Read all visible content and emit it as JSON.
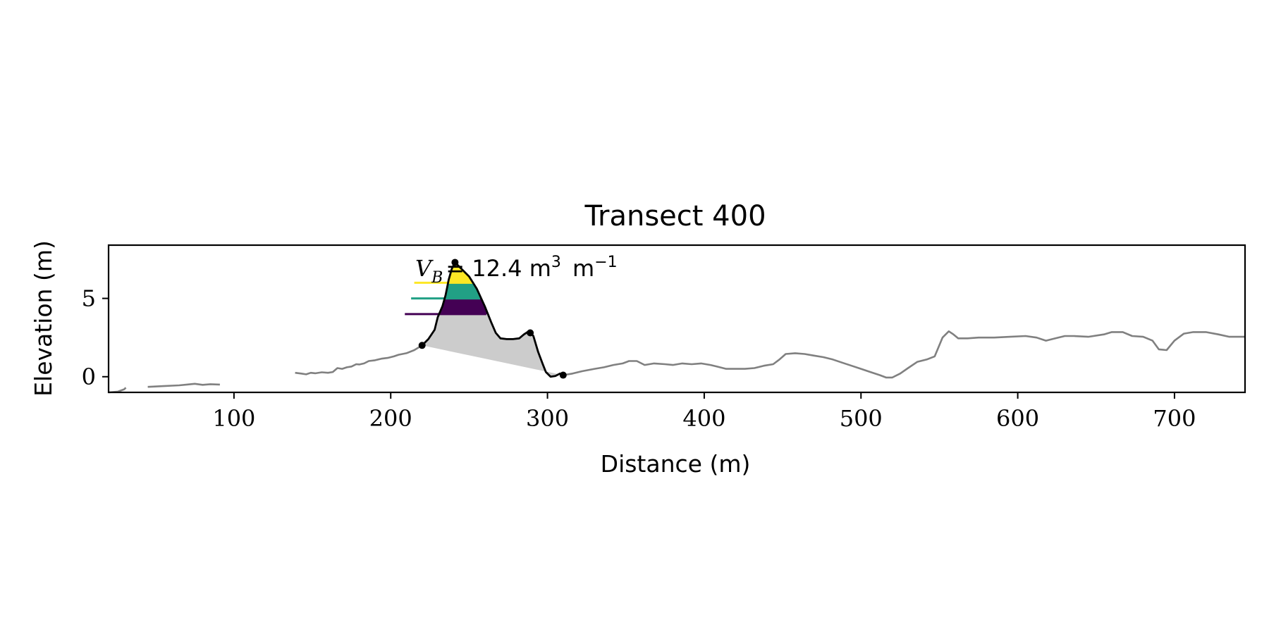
{
  "chart_data": {
    "type": "line",
    "title": "Transect 400",
    "xlabel": "Distance (m)",
    "ylabel": "Elevation (m)",
    "xlim": [
      20,
      745
    ],
    "ylim": [
      -1,
      8.4
    ],
    "xticks": [
      100,
      200,
      300,
      400,
      500,
      600,
      700
    ],
    "yticks": [
      0,
      5
    ],
    "grid": false,
    "annotation": {
      "symbol": "V",
      "subscript": "B",
      "text": "= 12.4 m",
      "sup1": "3",
      "unit2": "m",
      "sup2": "−1"
    },
    "colors": {
      "profile": "#808080",
      "dune": "#000000",
      "fill": "#cccccc",
      "level_yellow": "#fde725",
      "level_teal": "#21a085",
      "level_purple": "#440154"
    },
    "series": [
      {
        "role": "profile",
        "segments": [
          [
            [
              20,
              -1.0
            ],
            [
              26,
              -0.95
            ],
            [
              30,
              -0.8
            ],
            [
              31,
              -0.7
            ]
          ],
          [
            [
              45,
              -0.65
            ],
            [
              55,
              -0.6
            ],
            [
              65,
              -0.55
            ],
            [
              70,
              -0.5
            ],
            [
              75,
              -0.45
            ],
            [
              80,
              -0.52
            ],
            [
              85,
              -0.48
            ],
            [
              91,
              -0.5
            ]
          ],
          [
            [
              139,
              0.25
            ],
            [
              143,
              0.2
            ],
            [
              146,
              0.15
            ],
            [
              149,
              0.25
            ],
            [
              152,
              0.22
            ],
            [
              156,
              0.28
            ],
            [
              160,
              0.25
            ],
            [
              163,
              0.3
            ],
            [
              166,
              0.55
            ],
            [
              169,
              0.5
            ],
            [
              172,
              0.6
            ],
            [
              175,
              0.65
            ],
            [
              178,
              0.8
            ],
            [
              180,
              0.78
            ],
            [
              183,
              0.85
            ],
            [
              186,
              1.0
            ],
            [
              190,
              1.05
            ],
            [
              194,
              1.15
            ],
            [
              198,
              1.2
            ],
            [
              202,
              1.3
            ],
            [
              205,
              1.4
            ],
            [
              210,
              1.5
            ],
            [
              215,
              1.7
            ],
            [
              220,
              2.0
            ]
          ],
          [
            [
              310,
              0.1
            ],
            [
              316,
              0.2
            ],
            [
              322,
              0.35
            ],
            [
              330,
              0.5
            ],
            [
              336,
              0.6
            ],
            [
              342,
              0.75
            ],
            [
              348,
              0.85
            ],
            [
              352,
              1.0
            ],
            [
              357,
              1.0
            ],
            [
              362,
              0.75
            ],
            [
              368,
              0.85
            ],
            [
              375,
              0.8
            ],
            [
              380,
              0.75
            ],
            [
              386,
              0.85
            ],
            [
              392,
              0.8
            ],
            [
              398,
              0.85
            ],
            [
              404,
              0.75
            ],
            [
              408,
              0.65
            ],
            [
              414,
              0.5
            ],
            [
              420,
              0.5
            ],
            [
              426,
              0.5
            ],
            [
              432,
              0.55
            ],
            [
              438,
              0.7
            ],
            [
              444,
              0.8
            ],
            [
              448,
              1.1
            ],
            [
              452,
              1.45
            ],
            [
              458,
              1.5
            ],
            [
              464,
              1.45
            ],
            [
              470,
              1.35
            ],
            [
              476,
              1.25
            ],
            [
              482,
              1.1
            ],
            [
              488,
              0.9
            ],
            [
              494,
              0.7
            ],
            [
              500,
              0.5
            ],
            [
              506,
              0.3
            ],
            [
              512,
              0.1
            ],
            [
              516,
              -0.05
            ],
            [
              520,
              -0.05
            ],
            [
              525,
              0.2
            ],
            [
              530,
              0.55
            ],
            [
              536,
              0.95
            ],
            [
              542,
              1.1
            ],
            [
              547,
              1.3
            ],
            [
              552,
              2.5
            ],
            [
              556,
              2.9
            ],
            [
              559,
              2.7
            ],
            [
              562,
              2.45
            ],
            [
              568,
              2.45
            ],
            [
              575,
              2.5
            ],
            [
              585,
              2.5
            ],
            [
              595,
              2.55
            ],
            [
              605,
              2.6
            ],
            [
              612,
              2.5
            ],
            [
              618,
              2.3
            ],
            [
              624,
              2.45
            ],
            [
              630,
              2.6
            ],
            [
              636,
              2.6
            ],
            [
              645,
              2.55
            ],
            [
              655,
              2.7
            ],
            [
              660,
              2.85
            ],
            [
              667,
              2.85
            ],
            [
              673,
              2.6
            ],
            [
              680,
              2.55
            ],
            [
              686,
              2.3
            ],
            [
              690,
              1.75
            ],
            [
              695,
              1.7
            ],
            [
              700,
              2.3
            ],
            [
              706,
              2.75
            ],
            [
              712,
              2.85
            ],
            [
              720,
              2.85
            ],
            [
              728,
              2.7
            ],
            [
              735,
              2.55
            ],
            [
              745,
              2.55
            ]
          ]
        ]
      },
      {
        "role": "dune",
        "points": [
          [
            220,
            2.0
          ],
          [
            224,
            2.4
          ],
          [
            228,
            3.0
          ],
          [
            230,
            3.8
          ],
          [
            233,
            4.5
          ],
          [
            235,
            5.2
          ],
          [
            237,
            6.2
          ],
          [
            239,
            6.9
          ],
          [
            241,
            7.3
          ],
          [
            245,
            6.9
          ],
          [
            250,
            6.4
          ],
          [
            255,
            5.6
          ],
          [
            260,
            4.5
          ],
          [
            264,
            3.5
          ],
          [
            267,
            2.8
          ],
          [
            270,
            2.45
          ],
          [
            274,
            2.4
          ],
          [
            278,
            2.4
          ],
          [
            282,
            2.45
          ],
          [
            285,
            2.7
          ],
          [
            288,
            2.9
          ],
          [
            291,
            2.6
          ],
          [
            294,
            1.6
          ],
          [
            297,
            0.8
          ],
          [
            299,
            0.3
          ],
          [
            302,
            0.0
          ],
          [
            305,
            0.05
          ],
          [
            308,
            0.2
          ],
          [
            310,
            0.1
          ]
        ]
      }
    ],
    "markers": [
      [
        220,
        2.0
      ],
      [
        241,
        7.3
      ],
      [
        289,
        2.8
      ],
      [
        310,
        0.1
      ]
    ],
    "levels": [
      {
        "y": 6.0,
        "color": "#fde725",
        "x_start": 215,
        "x_end": 253
      },
      {
        "y": 5.0,
        "color": "#21a085",
        "x_start": 213,
        "x_end": 257
      },
      {
        "y": 4.0,
        "color": "#440154",
        "x_start": 209,
        "x_end": 261
      }
    ]
  }
}
